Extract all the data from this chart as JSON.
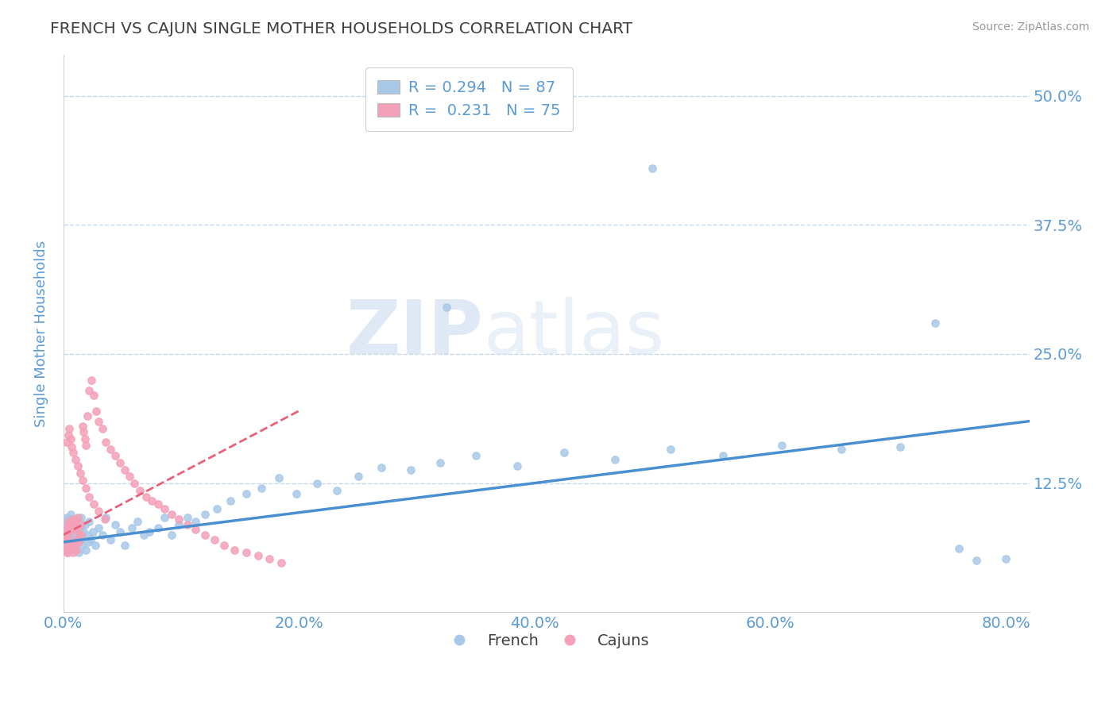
{
  "title": "FRENCH VS CAJUN SINGLE MOTHER HOUSEHOLDS CORRELATION CHART",
  "source": "Source: ZipAtlas.com",
  "ylabel": "Single Mother Households",
  "xlim": [
    0.0,
    0.82
  ],
  "ylim": [
    0.0,
    0.54
  ],
  "yticks": [
    0.0,
    0.125,
    0.25,
    0.375,
    0.5
  ],
  "ytick_labels": [
    "",
    "12.5%",
    "25.0%",
    "37.5%",
    "50.0%"
  ],
  "xticks": [
    0.0,
    0.2,
    0.4,
    0.6,
    0.8
  ],
  "xtick_labels": [
    "0.0%",
    "20.0%",
    "40.0%",
    "60.0%",
    "80.0%"
  ],
  "french_R": 0.294,
  "french_N": 87,
  "cajun_R": 0.231,
  "cajun_N": 75,
  "french_color": "#a8c8e8",
  "cajun_color": "#f4a0b8",
  "french_line_color": "#4a90d0",
  "cajun_line_color": "#e8607a",
  "title_color": "#404040",
  "tick_label_color": "#5b9bd5",
  "grid_color": "#c8d8e8",
  "watermark_zip": "ZIP",
  "watermark_atlas": "atlas",
  "french_x": [
    0.001,
    0.002,
    0.002,
    0.003,
    0.003,
    0.003,
    0.004,
    0.004,
    0.004,
    0.005,
    0.005,
    0.005,
    0.006,
    0.006,
    0.006,
    0.007,
    0.007,
    0.008,
    0.008,
    0.009,
    0.009,
    0.01,
    0.01,
    0.011,
    0.011,
    0.012,
    0.012,
    0.013,
    0.013,
    0.014,
    0.015,
    0.015,
    0.016,
    0.017,
    0.018,
    0.019,
    0.02,
    0.021,
    0.022,
    0.023,
    0.025,
    0.027,
    0.03,
    0.033,
    0.036,
    0.04,
    0.044,
    0.048,
    0.052,
    0.058,
    0.063,
    0.068,
    0.073,
    0.08,
    0.086,
    0.092,
    0.098,
    0.105,
    0.112,
    0.12,
    0.13,
    0.142,
    0.155,
    0.168,
    0.183,
    0.198,
    0.215,
    0.232,
    0.25,
    0.27,
    0.295,
    0.32,
    0.35,
    0.385,
    0.425,
    0.468,
    0.515,
    0.56,
    0.61,
    0.66,
    0.71,
    0.76,
    0.8,
    0.5,
    0.325,
    0.74,
    0.775
  ],
  "french_y": [
    0.06,
    0.075,
    0.085,
    0.065,
    0.078,
    0.092,
    0.058,
    0.072,
    0.088,
    0.062,
    0.076,
    0.09,
    0.068,
    0.08,
    0.095,
    0.065,
    0.082,
    0.07,
    0.088,
    0.06,
    0.078,
    0.065,
    0.085,
    0.072,
    0.09,
    0.068,
    0.08,
    0.058,
    0.075,
    0.07,
    0.082,
    0.092,
    0.065,
    0.078,
    0.085,
    0.06,
    0.075,
    0.068,
    0.088,
    0.07,
    0.078,
    0.065,
    0.082,
    0.075,
    0.092,
    0.07,
    0.085,
    0.078,
    0.065,
    0.082,
    0.088,
    0.075,
    0.078,
    0.082,
    0.092,
    0.075,
    0.085,
    0.092,
    0.088,
    0.095,
    0.1,
    0.108,
    0.115,
    0.12,
    0.13,
    0.115,
    0.125,
    0.118,
    0.132,
    0.14,
    0.138,
    0.145,
    0.152,
    0.142,
    0.155,
    0.148,
    0.158,
    0.152,
    0.162,
    0.158,
    0.16,
    0.062,
    0.052,
    0.43,
    0.295,
    0.28,
    0.05
  ],
  "cajun_x": [
    0.001,
    0.002,
    0.002,
    0.003,
    0.003,
    0.004,
    0.004,
    0.005,
    0.005,
    0.006,
    0.006,
    0.007,
    0.007,
    0.008,
    0.008,
    0.009,
    0.009,
    0.01,
    0.01,
    0.011,
    0.012,
    0.012,
    0.013,
    0.014,
    0.015,
    0.016,
    0.017,
    0.018,
    0.019,
    0.02,
    0.022,
    0.024,
    0.026,
    0.028,
    0.03,
    0.033,
    0.036,
    0.04,
    0.044,
    0.048,
    0.052,
    0.056,
    0.06,
    0.065,
    0.07,
    0.075,
    0.08,
    0.086,
    0.092,
    0.098,
    0.105,
    0.112,
    0.12,
    0.128,
    0.136,
    0.145,
    0.155,
    0.165,
    0.175,
    0.185,
    0.003,
    0.004,
    0.005,
    0.006,
    0.007,
    0.008,
    0.01,
    0.012,
    0.014,
    0.016,
    0.019,
    0.022,
    0.026,
    0.03,
    0.035
  ],
  "cajun_y": [
    0.062,
    0.07,
    0.082,
    0.058,
    0.075,
    0.065,
    0.088,
    0.06,
    0.078,
    0.068,
    0.085,
    0.062,
    0.08,
    0.058,
    0.09,
    0.065,
    0.082,
    0.07,
    0.088,
    0.06,
    0.078,
    0.092,
    0.068,
    0.085,
    0.075,
    0.18,
    0.175,
    0.168,
    0.162,
    0.19,
    0.215,
    0.225,
    0.21,
    0.195,
    0.185,
    0.178,
    0.165,
    0.158,
    0.152,
    0.145,
    0.138,
    0.132,
    0.125,
    0.118,
    0.112,
    0.108,
    0.105,
    0.1,
    0.095,
    0.09,
    0.085,
    0.08,
    0.075,
    0.07,
    0.065,
    0.06,
    0.058,
    0.055,
    0.052,
    0.048,
    0.165,
    0.172,
    0.178,
    0.168,
    0.16,
    0.155,
    0.148,
    0.142,
    0.135,
    0.128,
    0.12,
    0.112,
    0.105,
    0.098,
    0.09
  ],
  "french_trend_x": [
    0.0,
    0.82
  ],
  "french_trend_y": [
    0.068,
    0.185
  ],
  "cajun_trend_x": [
    0.0,
    0.2
  ],
  "cajun_trend_y": [
    0.075,
    0.195
  ]
}
